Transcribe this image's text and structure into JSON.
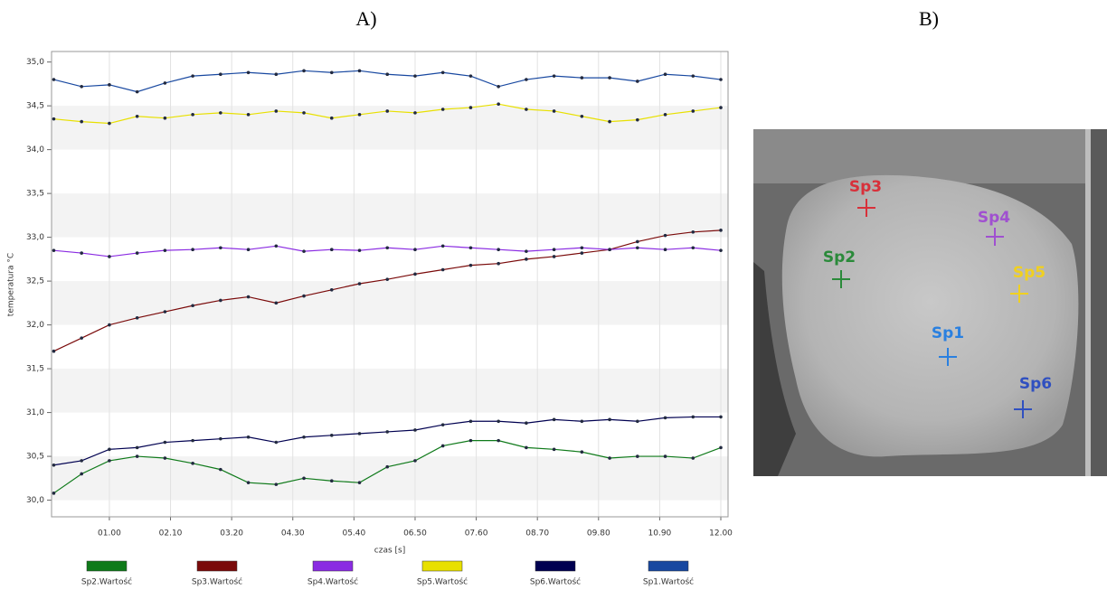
{
  "panel_labels": [
    "A)",
    "B)"
  ],
  "chart_data": {
    "type": "line",
    "ylabel": "temperatura °C",
    "xlabel": "czas [s]",
    "xlim": [
      -0.04,
      12.13
    ],
    "ylim": [
      29.81,
      35.12
    ],
    "xticks": [
      {
        "value": 1.0,
        "label": "01.00"
      },
      {
        "value": 2.1,
        "label": "02.10"
      },
      {
        "value": 3.2,
        "label": "03.20"
      },
      {
        "value": 4.3,
        "label": "04.30"
      },
      {
        "value": 5.4,
        "label": "05.40"
      },
      {
        "value": 6.5,
        "label": "06.50"
      },
      {
        "value": 7.6,
        "label": "07.60"
      },
      {
        "value": 8.7,
        "label": "08.70"
      },
      {
        "value": 9.8,
        "label": "09.80"
      },
      {
        "value": 10.9,
        "label": "10.90"
      },
      {
        "value": 12.0,
        "label": "12.00"
      }
    ],
    "yticks": [
      {
        "value": 30.0,
        "label": "30,0"
      },
      {
        "value": 30.5,
        "label": "30,5"
      },
      {
        "value": 31.0,
        "label": "31,0"
      },
      {
        "value": 31.5,
        "label": "31,5"
      },
      {
        "value": 32.0,
        "label": "32,0"
      },
      {
        "value": 32.5,
        "label": "32,5"
      },
      {
        "value": 33.0,
        "label": "33,0"
      },
      {
        "value": 33.5,
        "label": "33,5"
      },
      {
        "value": 34.0,
        "label": "34,0"
      },
      {
        "value": 34.5,
        "label": "34,5"
      },
      {
        "value": 35.0,
        "label": "35,0"
      }
    ],
    "grid": true,
    "x": [
      0,
      0.5,
      1,
      1.5,
      2,
      2.5,
      3,
      3.5,
      4,
      4.5,
      5,
      5.5,
      6,
      6.5,
      7,
      7.5,
      8,
      8.5,
      9,
      9.5,
      10,
      10.5,
      11,
      11.5,
      12
    ],
    "series": [
      {
        "name": "Sp2.Wartość",
        "color": "#0f7a1a",
        "values": [
          30.08,
          30.3,
          30.45,
          30.5,
          30.48,
          30.42,
          30.35,
          30.2,
          30.18,
          30.25,
          30.22,
          30.2,
          30.38,
          30.45,
          30.62,
          30.68,
          30.68,
          30.6,
          30.58,
          30.55,
          30.48,
          30.5,
          30.5,
          30.48,
          30.6
        ]
      },
      {
        "name": "Sp3.Wartość",
        "color": "#7a0a0a",
        "values": [
          31.7,
          31.85,
          32.0,
          32.08,
          32.15,
          32.22,
          32.28,
          32.32,
          32.25,
          32.33,
          32.4,
          32.47,
          32.52,
          32.58,
          32.63,
          32.68,
          32.7,
          32.75,
          32.78,
          32.82,
          32.86,
          32.95,
          33.02,
          33.06,
          33.08
        ]
      },
      {
        "name": "Sp4.Wartość",
        "color": "#8a2be2",
        "values": [
          32.85,
          32.82,
          32.78,
          32.82,
          32.85,
          32.86,
          32.88,
          32.86,
          32.9,
          32.84,
          32.86,
          32.85,
          32.88,
          32.86,
          32.9,
          32.88,
          32.86,
          32.84,
          32.86,
          32.88,
          32.86,
          32.88,
          32.86,
          32.88,
          32.85
        ]
      },
      {
        "name": "Sp5.Wartość",
        "color": "#e8e000",
        "values": [
          34.35,
          34.32,
          34.3,
          34.38,
          34.36,
          34.4,
          34.42,
          34.4,
          34.44,
          34.42,
          34.36,
          34.4,
          34.44,
          34.42,
          34.46,
          34.48,
          34.52,
          34.46,
          34.44,
          34.38,
          34.32,
          34.34,
          34.4,
          34.44,
          34.48
        ]
      },
      {
        "name": "Sp6.Wartość",
        "color": "#000050",
        "values": [
          30.4,
          30.45,
          30.58,
          30.6,
          30.66,
          30.68,
          30.7,
          30.72,
          30.66,
          30.72,
          30.74,
          30.76,
          30.78,
          30.8,
          30.86,
          30.9,
          30.9,
          30.88,
          30.92,
          30.9,
          30.92,
          30.9,
          30.94,
          30.95,
          30.95
        ]
      },
      {
        "name": "Sp1.Wartość",
        "color": "#1848a0",
        "values": [
          34.8,
          34.72,
          34.74,
          34.66,
          34.76,
          34.84,
          34.86,
          34.88,
          34.86,
          34.9,
          34.88,
          34.9,
          34.86,
          34.84,
          34.88,
          34.84,
          34.72,
          34.8,
          34.84,
          34.82,
          34.82,
          34.78,
          34.86,
          34.84,
          34.8
        ]
      }
    ]
  },
  "image": {
    "markers": [
      {
        "label": "Sp3",
        "color": "#d8303a"
      },
      {
        "label": "Sp4",
        "color": "#a050d0"
      },
      {
        "label": "Sp2",
        "color": "#2a8a3a"
      },
      {
        "label": "Sp5",
        "color": "#f0d020"
      },
      {
        "label": "Sp1",
        "color": "#2a80e0"
      },
      {
        "label": "Sp6",
        "color": "#3050c0"
      }
    ]
  }
}
